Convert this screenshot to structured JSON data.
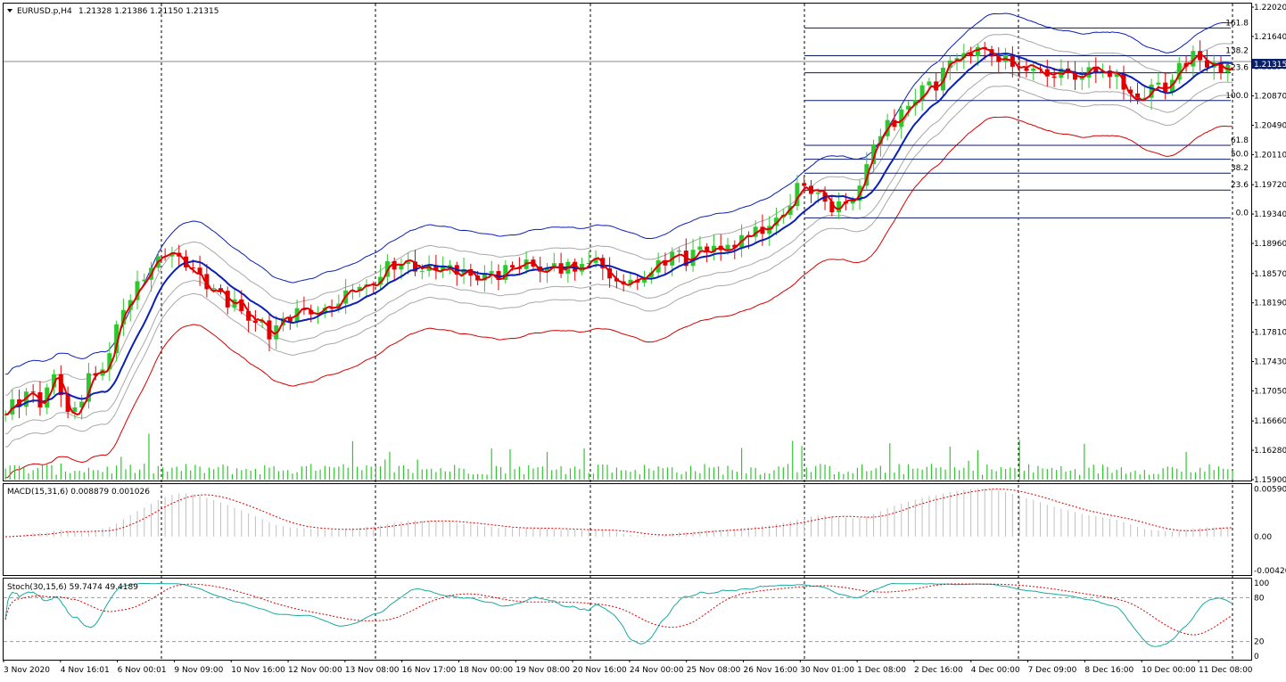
{
  "chart_data": [
    {
      "type": "candlestick",
      "panel": "price",
      "symbol_info": "EURUSD.p,H4",
      "ohlc_text": "1.21328 1.21386 1.21150 1.21315",
      "current_price": "1.21315",
      "ylim": [
        1.159,
        1.2202
      ],
      "y_ticks": [
        "1.22020",
        "1.21640",
        "1.21250",
        "1.20870",
        "1.20490",
        "1.20110",
        "1.19720",
        "1.19340",
        "1.18960",
        "1.18570",
        "1.18190",
        "1.17810",
        "1.17430",
        "1.17050",
        "1.16660",
        "1.16280",
        "1.15900"
      ],
      "x_ticks": [
        "3 Nov 2020",
        "4 Nov 16:01",
        "6 Nov 00:01",
        "9 Nov 09:00",
        "10 Nov 16:00",
        "12 Nov 00:00",
        "13 Nov 08:00",
        "16 Nov 17:00",
        "18 Nov 00:00",
        "19 Nov 08:00",
        "20 Nov 16:00",
        "24 Nov 00:00",
        "25 Nov 08:00",
        "26 Nov 16:00",
        "30 Nov 01:00",
        "1 Dec 08:00",
        "2 Dec 16:00",
        "4 Dec 00:00",
        "7 Dec 09:00",
        "8 Dec 16:00",
        "10 Dec 00:00",
        "11 Dec 08:00"
      ],
      "anchors": [
        {
          "x": 0,
          "y": 1.1672
        },
        {
          "x": 8,
          "y": 1.17
        },
        {
          "x": 16,
          "y": 1.169
        },
        {
          "x": 22,
          "y": 1.173
        },
        {
          "x": 28,
          "y": 1.166
        },
        {
          "x": 36,
          "y": 1.172
        },
        {
          "x": 44,
          "y": 1.1735
        },
        {
          "x": 50,
          "y": 1.1812
        },
        {
          "x": 56,
          "y": 1.183
        },
        {
          "x": 62,
          "y": 1.187
        },
        {
          "x": 70,
          "y": 1.1885
        },
        {
          "x": 74,
          "y": 1.1878
        },
        {
          "x": 80,
          "y": 1.186
        },
        {
          "x": 86,
          "y": 1.184
        },
        {
          "x": 94,
          "y": 1.1825
        },
        {
          "x": 102,
          "y": 1.1812
        },
        {
          "x": 110,
          "y": 1.179
        },
        {
          "x": 116,
          "y": 1.178
        },
        {
          "x": 124,
          "y": 1.181
        },
        {
          "x": 132,
          "y": 1.1805
        },
        {
          "x": 140,
          "y": 1.1815
        },
        {
          "x": 150,
          "y": 1.1835
        },
        {
          "x": 158,
          "y": 1.1845
        },
        {
          "x": 166,
          "y": 1.187
        },
        {
          "x": 174,
          "y": 1.1872
        },
        {
          "x": 182,
          "y": 1.186
        },
        {
          "x": 190,
          "y": 1.1862
        },
        {
          "x": 198,
          "y": 1.1858
        },
        {
          "x": 206,
          "y": 1.1848
        },
        {
          "x": 214,
          "y": 1.1855
        },
        {
          "x": 222,
          "y": 1.187
        },
        {
          "x": 230,
          "y": 1.1858
        },
        {
          "x": 238,
          "y": 1.1865
        },
        {
          "x": 246,
          "y": 1.1862
        },
        {
          "x": 254,
          "y": 1.1875
        },
        {
          "x": 262,
          "y": 1.185
        },
        {
          "x": 270,
          "y": 1.1845
        },
        {
          "x": 278,
          "y": 1.186
        },
        {
          "x": 286,
          "y": 1.188
        },
        {
          "x": 294,
          "y": 1.1875
        },
        {
          "x": 302,
          "y": 1.1885
        },
        {
          "x": 310,
          "y": 1.189
        },
        {
          "x": 318,
          "y": 1.19
        },
        {
          "x": 326,
          "y": 1.191
        },
        {
          "x": 334,
          "y": 1.193
        },
        {
          "x": 338,
          "y": 1.1945
        },
        {
          "x": 342,
          "y": 1.1965
        },
        {
          "x": 346,
          "y": 1.196
        },
        {
          "x": 350,
          "y": 1.1972
        },
        {
          "x": 354,
          "y": 1.195
        },
        {
          "x": 358,
          "y": 1.1942
        },
        {
          "x": 364,
          "y": 1.1955
        },
        {
          "x": 370,
          "y": 1.1975
        },
        {
          "x": 374,
          "y": 1.202
        },
        {
          "x": 380,
          "y": 1.205
        },
        {
          "x": 386,
          "y": 1.2058
        },
        {
          "x": 392,
          "y": 1.2085
        },
        {
          "x": 398,
          "y": 1.2095
        },
        {
          "x": 404,
          "y": 1.211
        },
        {
          "x": 408,
          "y": 1.2135
        },
        {
          "x": 414,
          "y": 1.214
        },
        {
          "x": 420,
          "y": 1.215
        },
        {
          "x": 426,
          "y": 1.214
        },
        {
          "x": 432,
          "y": 1.213
        },
        {
          "x": 438,
          "y": 1.212
        },
        {
          "x": 444,
          "y": 1.2125
        },
        {
          "x": 450,
          "y": 1.2115
        },
        {
          "x": 456,
          "y": 1.212
        },
        {
          "x": 462,
          "y": 1.2112
        },
        {
          "x": 468,
          "y": 1.2118
        },
        {
          "x": 474,
          "y": 1.2122
        },
        {
          "x": 480,
          "y": 1.211
        },
        {
          "x": 486,
          "y": 1.208
        },
        {
          "x": 490,
          "y": 1.2088
        },
        {
          "x": 496,
          "y": 1.2095
        },
        {
          "x": 502,
          "y": 1.2105
        },
        {
          "x": 508,
          "y": 1.2125
        },
        {
          "x": 514,
          "y": 1.214
        },
        {
          "x": 518,
          "y": 1.2132
        },
        {
          "x": 522,
          "y": 1.2125
        },
        {
          "x": 528,
          "y": 1.2125
        },
        {
          "x": 530,
          "y": 1.21315
        }
      ],
      "candle_count": 531,
      "volume_ylim": [
        0,
        40
      ],
      "fibonacci": {
        "levels": [
          {
            "label": "161.8",
            "price": 1.2175
          },
          {
            "label": "138.2",
            "price": 1.2139
          },
          {
            "label": "123.6",
            "price": 1.2117
          },
          {
            "label": "100.0",
            "price": 1.2081
          },
          {
            "label": "61.8",
            "price": 1.2023
          },
          {
            "label": "50.0",
            "price": 1.2005
          },
          {
            "label": "38.2",
            "price": 1.1987
          },
          {
            "label": "23.6",
            "price": 1.1965
          },
          {
            "label": "0.0",
            "price": 1.1929
          }
        ]
      },
      "colors": {
        "bull": "#2ec82e",
        "bear": "#e00000",
        "ma_red": "#e00000",
        "ma_blue": "#0a1fb5",
        "band_outer_top": "#0a1fb5",
        "band_outer_bottom": "#d40000",
        "band_inner": "#a8a8a8",
        "grid_v": "#000000",
        "fib": "#0a1a6a",
        "volume": "#2ec82e"
      }
    },
    {
      "type": "histogram",
      "panel": "macd",
      "label": "MACD(15,31,6) 0.008879 0.001026",
      "ylim": [
        -0.0042,
        0.00596
      ],
      "y_ticks": [
        "0.005906",
        "0.00",
        "-0.00420"
      ],
      "colors": {
        "hist": "#c0c0c0",
        "signal": "#e00000"
      }
    },
    {
      "type": "line",
      "panel": "stoch",
      "label": "Stoch(30,15,6) 59.7474 49.4189",
      "ylim": [
        0,
        100
      ],
      "y_ticks": [
        "100",
        "80",
        "20",
        "0"
      ],
      "levels": [
        80,
        20
      ],
      "colors": {
        "main": "#1aaaa0",
        "signal": "#e00000"
      }
    }
  ]
}
